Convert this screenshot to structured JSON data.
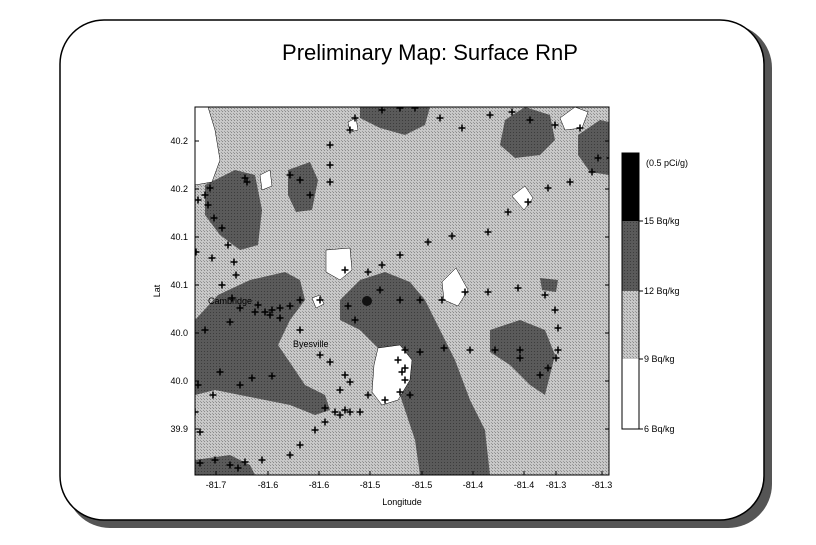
{
  "title": "Preliminary Map: Surface RnP",
  "map": {
    "xlabel": "Longitude",
    "ylabel": "Lat",
    "x_ticks": [
      "-81.7",
      "-81.6",
      "-81.6",
      "-81.5",
      "-81.5",
      "-81.4",
      "-81.4",
      "-81.3",
      "-81.3"
    ],
    "y_ticks": [
      "40.2",
      "40.2",
      "40.1",
      "40.1",
      "40.0",
      "40.0",
      "39.9"
    ],
    "town_labels": [
      "Cambridge",
      "Byesville"
    ]
  },
  "legend": {
    "items": [
      {
        "label": "(0.5 pCi/g)",
        "color": "#000000"
      },
      {
        "label": "15 Bq/kg",
        "color": "#545454"
      },
      {
        "label": "12 Bq/kg",
        "color": "#9a9a9a"
      },
      {
        "label": "9 Bq/kg",
        "color": "#ffffff"
      },
      {
        "label": "6 Bq/kg",
        "color": "#ffffff"
      }
    ]
  },
  "colors": {
    "background_level": "#bdbdbd",
    "dark_level": "#545454",
    "white_level": "#ffffff"
  }
}
